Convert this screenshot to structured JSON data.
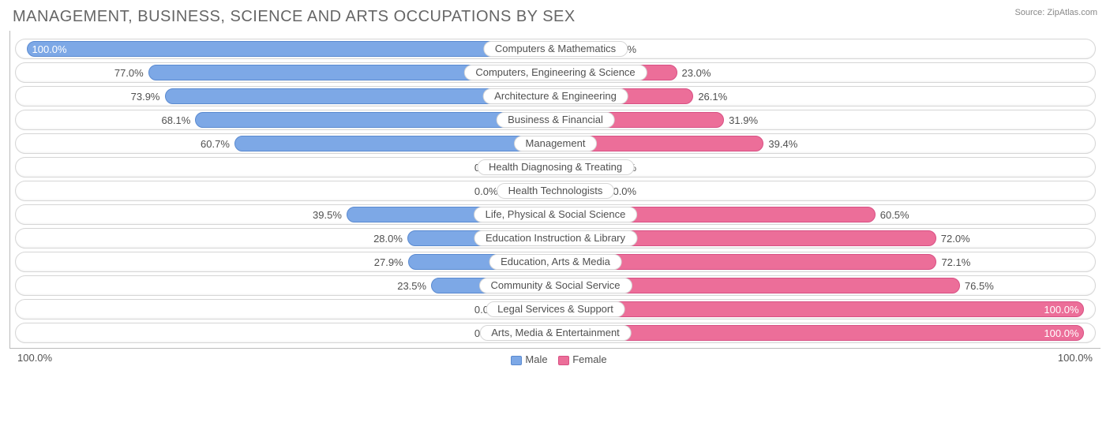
{
  "title": "MANAGEMENT, BUSINESS, SCIENCE AND ARTS OCCUPATIONS BY SEX",
  "source_label": "Source:",
  "source_site": "ZipAtlas.com",
  "colors": {
    "male_fill": "#7da8e6",
    "male_border": "#5a8ad0",
    "female_fill": "#ec6e99",
    "female_border": "#d85084",
    "track_border": "#d6d6d6",
    "text": "#505050",
    "title_text": "#666666"
  },
  "axis": {
    "left": "100.0%",
    "right": "100.0%"
  },
  "legend": {
    "male": "Male",
    "female": "Female"
  },
  "min_bar_pct": 10.0,
  "rows": [
    {
      "category": "Computers & Mathematics",
      "male": 100.0,
      "female": 0.0,
      "male_label": "100.0%",
      "female_label": "0.0%"
    },
    {
      "category": "Computers, Engineering & Science",
      "male": 77.0,
      "female": 23.0,
      "male_label": "77.0%",
      "female_label": "23.0%"
    },
    {
      "category": "Architecture & Engineering",
      "male": 73.9,
      "female": 26.1,
      "male_label": "73.9%",
      "female_label": "26.1%"
    },
    {
      "category": "Business & Financial",
      "male": 68.1,
      "female": 31.9,
      "male_label": "68.1%",
      "female_label": "31.9%"
    },
    {
      "category": "Management",
      "male": 60.7,
      "female": 39.4,
      "male_label": "60.7%",
      "female_label": "39.4%"
    },
    {
      "category": "Health Diagnosing & Treating",
      "male": 0.0,
      "female": 0.0,
      "male_label": "0.0%",
      "female_label": "0.0%"
    },
    {
      "category": "Health Technologists",
      "male": 0.0,
      "female": 0.0,
      "male_label": "0.0%",
      "female_label": "0.0%"
    },
    {
      "category": "Life, Physical & Social Science",
      "male": 39.5,
      "female": 60.5,
      "male_label": "39.5%",
      "female_label": "60.5%"
    },
    {
      "category": "Education Instruction & Library",
      "male": 28.0,
      "female": 72.0,
      "male_label": "28.0%",
      "female_label": "72.0%"
    },
    {
      "category": "Education, Arts & Media",
      "male": 27.9,
      "female": 72.1,
      "male_label": "27.9%",
      "female_label": "72.1%"
    },
    {
      "category": "Community & Social Service",
      "male": 23.5,
      "female": 76.5,
      "male_label": "23.5%",
      "female_label": "76.5%"
    },
    {
      "category": "Legal Services & Support",
      "male": 0.0,
      "female": 100.0,
      "male_label": "0.0%",
      "female_label": "100.0%"
    },
    {
      "category": "Arts, Media & Entertainment",
      "male": 0.0,
      "female": 100.0,
      "male_label": "0.0%",
      "female_label": "100.0%"
    }
  ]
}
